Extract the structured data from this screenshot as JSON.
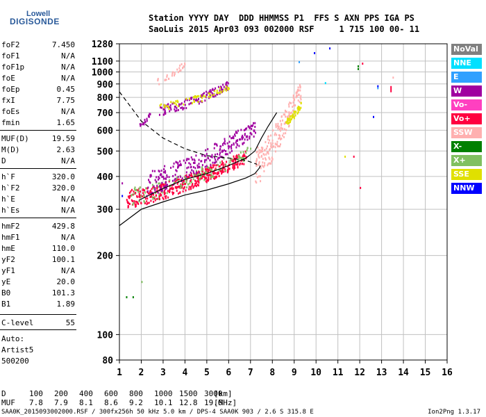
{
  "logo": {
    "line1": "Lowell",
    "line2": "DIGISONDE"
  },
  "header": {
    "labels_row": "Station YYYY DAY  DDD HHMMSS P1  FFS S AXN PPS IGA PS",
    "values_row": "SaoLuis 2015 Apr03 093 002000 RSF     1 715 100 00- 11"
  },
  "parameters": [
    {
      "name": "foF2",
      "value": "7.450"
    },
    {
      "name": "foF1",
      "value": "N/A"
    },
    {
      "name": "foF1p",
      "value": "N/A"
    },
    {
      "name": "foE",
      "value": "N/A"
    },
    {
      "name": "foEp",
      "value": "0.45"
    },
    {
      "name": "fxI",
      "value": "7.75"
    },
    {
      "name": "foEs",
      "value": "N/A"
    },
    {
      "name": "fmin",
      "value": "1.65"
    },
    {
      "name": "MUF(D)",
      "value": "19.59"
    },
    {
      "name": "M(D)",
      "value": "2.63"
    },
    {
      "name": "D",
      "value": "N/A"
    },
    {
      "name": "h`F",
      "value": "320.0"
    },
    {
      "name": "h`F2",
      "value": "320.0"
    },
    {
      "name": "h`E",
      "value": "N/A"
    },
    {
      "name": "h`Es",
      "value": "N/A"
    },
    {
      "name": "hmF2",
      "value": "429.8"
    },
    {
      "name": "hmF1",
      "value": "N/A"
    },
    {
      "name": "hmE",
      "value": "110.0"
    },
    {
      "name": "yF2",
      "value": "100.1"
    },
    {
      "name": "yF1",
      "value": "N/A"
    },
    {
      "name": "yE",
      "value": "20.0"
    },
    {
      "name": "B0",
      "value": "101.3"
    },
    {
      "name": "B1",
      "value": "1.89"
    },
    {
      "name": "C-level",
      "value": "55"
    }
  ],
  "auto": {
    "line1": "Auto:",
    "line2": "Artist5",
    "line3": "500200"
  },
  "legend": [
    {
      "label": "NoVal",
      "color": "#808080"
    },
    {
      "label": "NNE",
      "color": "#00e0ff"
    },
    {
      "label": "E",
      "color": "#30a0ff"
    },
    {
      "label": "W",
      "color": "#a000a0"
    },
    {
      "label": "Vo-",
      "color": "#ff40c0"
    },
    {
      "label": "Vo+",
      "color": "#ff0040"
    },
    {
      "label": "SSW",
      "color": "#ffb0b0"
    },
    {
      "label": "X-",
      "color": "#008000"
    },
    {
      "label": "X+",
      "color": "#80c060"
    },
    {
      "label": "SSE",
      "color": "#e0e000"
    },
    {
      "label": "NNW",
      "color": "#0000ff"
    }
  ],
  "muf_table": {
    "d_label": "D",
    "d_values": [
      "100",
      "200",
      "400",
      "600",
      "800",
      "1000",
      "1500",
      "3000"
    ],
    "d_unit": "[km]",
    "muf_label": "MUF",
    "muf_values": [
      "7.8",
      "7.9",
      "8.1",
      "8.6",
      "9.2",
      "10.1",
      "12.8",
      "19.6"
    ],
    "muf_unit": "[MHz]"
  },
  "footer": {
    "left": "SAA0K_2015093002000.RSF / 300fx256h 50 kHz 5.0 km / DPS-4 SAA0K 903 / 2.6 S 315.8 E",
    "right": "Ion2Png 1.3.17"
  },
  "chart_data": {
    "type": "scatter",
    "title": "",
    "xlabel": "",
    "ylabel": "",
    "xlim": [
      1,
      16
    ],
    "ylim": [
      80,
      1280
    ],
    "y_scale": "log",
    "x_ticks": [
      "1",
      "2",
      "3",
      "4",
      "5",
      "6",
      "7",
      "8",
      "9",
      "10",
      "11",
      "12",
      "13",
      "14",
      "15",
      "16"
    ],
    "y_ticks": [
      "80",
      "100",
      "200",
      "300",
      "400",
      "500",
      "600",
      "700",
      "800",
      "900",
      "1000",
      "1100",
      "1280"
    ],
    "y_tick_values": [
      80,
      100,
      200,
      300,
      400,
      500,
      600,
      700,
      800,
      900,
      1000,
      1100,
      1280
    ],
    "grid": true,
    "legend_position": "right",
    "point_clouds": [
      {
        "series": "Vo+",
        "x": [
          1.3,
          6.8
        ],
        "y": [
          330,
          480
        ],
        "density": 420
      },
      {
        "series": "X+",
        "x": [
          1.5,
          7.0
        ],
        "y": [
          340,
          500
        ],
        "density": 120
      },
      {
        "series": "W",
        "x": [
          2.2,
          7.2
        ],
        "y": [
          380,
          620
        ],
        "density": 260
      },
      {
        "series": "SSW",
        "x": [
          7.2,
          9.3
        ],
        "y": [
          440,
          860
        ],
        "density": 200
      },
      {
        "series": "SSE",
        "x": [
          8.6,
          9.3
        ],
        "y": [
          650,
          760
        ],
        "density": 50
      },
      {
        "series": "W",
        "x": [
          2.8,
          6.0
        ],
        "y": [
          720,
          900
        ],
        "density": 120
      },
      {
        "series": "SSE",
        "x": [
          2.8,
          6.0
        ],
        "y": [
          740,
          880
        ],
        "density": 60
      },
      {
        "series": "SSW",
        "x": [
          2.6,
          4.0
        ],
        "y": [
          920,
          1090
        ],
        "density": 30
      },
      {
        "series": "W",
        "x": [
          1.9,
          2.4
        ],
        "y": [
          630,
          700
        ],
        "density": 20
      }
    ],
    "curves": [
      {
        "name": "true height profile",
        "style": "solid",
        "x": [
          1.0,
          2.0,
          3.0,
          4.0,
          5.0,
          6.0,
          6.8,
          7.2,
          7.4,
          7.45
        ],
        "y": [
          260,
          300,
          320,
          340,
          355,
          375,
          395,
          410,
          430,
          440
        ]
      },
      {
        "name": "trace",
        "style": "solid",
        "x": [
          1.9,
          3.0,
          4.0,
          5.0,
          6.0,
          6.8,
          7.2,
          7.5,
          7.8,
          8.2
        ],
        "y": [
          325,
          360,
          390,
          410,
          440,
          470,
          500,
          560,
          620,
          700
        ]
      },
      {
        "name": "dashed",
        "style": "dashed",
        "x": [
          1.0,
          1.5,
          2.0,
          3.0,
          4.0,
          5.0,
          6.0,
          6.8,
          7.3
        ],
        "y": [
          840,
          740,
          650,
          560,
          510,
          480,
          470,
          460,
          445
        ]
      }
    ],
    "isolated_points": [
      {
        "x": 10.6,
        "y": 1240,
        "series": "NNW"
      },
      {
        "x": 9.9,
        "y": 1190,
        "series": "NNW"
      },
      {
        "x": 9.2,
        "y": 1100,
        "series": "E"
      },
      {
        "x": 11.9,
        "y": 1060,
        "series": "X-"
      },
      {
        "x": 12.1,
        "y": 1085,
        "series": "Vo+"
      },
      {
        "x": 11.9,
        "y": 1035,
        "series": "X-"
      },
      {
        "x": 12.8,
        "y": 890,
        "series": "NNW"
      },
      {
        "x": 12.8,
        "y": 875,
        "series": "E"
      },
      {
        "x": 13.4,
        "y": 860,
        "series": "Vo+"
      },
      {
        "x": 13.5,
        "y": 960,
        "series": "SSW"
      },
      {
        "x": 12.6,
        "y": 680,
        "series": "NNW"
      },
      {
        "x": 10.4,
        "y": 915,
        "series": "NNE"
      },
      {
        "x": 11.3,
        "y": 480,
        "series": "SSE"
      },
      {
        "x": 11.7,
        "y": 480,
        "series": "Vo+"
      },
      {
        "x": 12.0,
        "y": 365,
        "series": "Vo+"
      },
      {
        "x": 1.3,
        "y": 140,
        "series": "X-"
      },
      {
        "x": 1.6,
        "y": 140,
        "series": "X-"
      },
      {
        "x": 2.0,
        "y": 160,
        "series": "X+"
      },
      {
        "x": 1.1,
        "y": 340,
        "series": "NNW"
      },
      {
        "x": 1.1,
        "y": 380,
        "series": "W"
      }
    ]
  }
}
